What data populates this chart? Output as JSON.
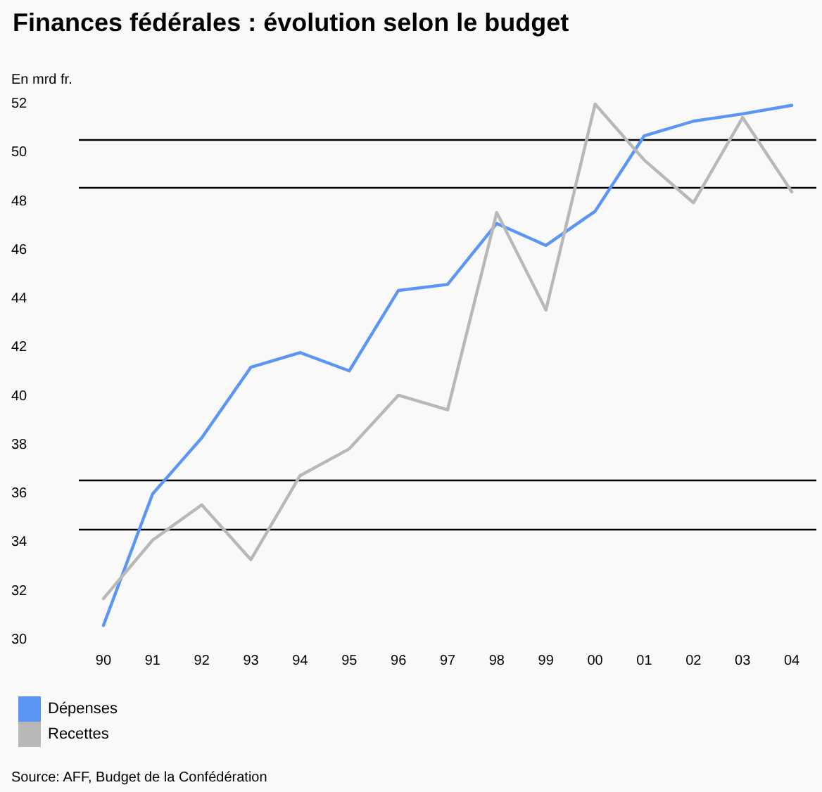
{
  "chart_data": {
    "type": "line",
    "title": "Finances fédérales : évolution selon le budget",
    "ylabel": "En mrd fr.",
    "categories": [
      "90",
      "91",
      "92",
      "93",
      "94",
      "95",
      "96",
      "97",
      "98",
      "99",
      "00",
      "01",
      "02",
      "03",
      "04"
    ],
    "series": [
      {
        "name": "Dépenses",
        "color": "#5b96f7",
        "values": [
          30.6,
          36.0,
          38.3,
          41.2,
          41.8,
          41.05,
          44.35,
          44.6,
          47.1,
          46.2,
          47.6,
          50.7,
          51.3,
          51.6,
          51.95
        ]
      },
      {
        "name": "Recettes",
        "color": "#b8b8b8",
        "values": [
          31.7,
          34.1,
          35.55,
          33.3,
          36.75,
          37.85,
          40.05,
          39.45,
          47.55,
          43.55,
          52,
          49.7,
          47.95,
          51.45,
          48.4
        ]
      }
    ],
    "ylim": [
      30,
      52
    ],
    "yticks": [
      30,
      32,
      34,
      36,
      38,
      40,
      42,
      44,
      46,
      48,
      50,
      52
    ],
    "ref_lines": [
      {
        "axis": "y",
        "value": 50.55,
        "color": "#000000"
      },
      {
        "axis": "y",
        "value": 48.55,
        "color": "#000000"
      },
      {
        "axis": "y",
        "value": 36.55,
        "color": "#000000"
      },
      {
        "axis": "y",
        "value": 34.55,
        "color": "#000000"
      }
    ],
    "annotations": [
      "Source: AFF, Budget de la Confédération"
    ],
    "grid": false,
    "legend": "bottom left",
    "marker": "none",
    "line_style": "solid"
  }
}
